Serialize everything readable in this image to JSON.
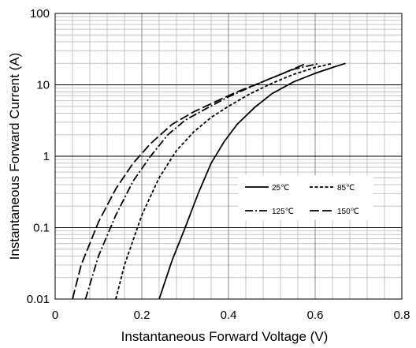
{
  "chart_data": {
    "type": "line",
    "title": "",
    "xlabel": "Instantaneous Forward Voltage (V)",
    "ylabel": "Instantaneous Forward Current (A)",
    "xlim": [
      0,
      0.8
    ],
    "ylim": [
      0.01,
      100
    ],
    "yscale": "log",
    "grid": true,
    "legend_position": "lower-right",
    "x_ticks": [
      "0",
      "0.2",
      "0.4",
      "0.6",
      "0.8"
    ],
    "y_ticks": [
      "0.01",
      "0.1",
      "1",
      "10",
      "100"
    ],
    "series": [
      {
        "name": "25℃",
        "dash": "solid",
        "points": [
          [
            0.24,
            0.01
          ],
          [
            0.27,
            0.035
          ],
          [
            0.3,
            0.1
          ],
          [
            0.33,
            0.3
          ],
          [
            0.36,
            0.8
          ],
          [
            0.39,
            1.6
          ],
          [
            0.42,
            2.8
          ],
          [
            0.46,
            4.8
          ],
          [
            0.5,
            7.5
          ],
          [
            0.55,
            11
          ],
          [
            0.6,
            14.5
          ],
          [
            0.64,
            17.5
          ],
          [
            0.67,
            20
          ]
        ]
      },
      {
        "name": "85℃",
        "dash": "short-dash",
        "points": [
          [
            0.14,
            0.01
          ],
          [
            0.16,
            0.03
          ],
          [
            0.2,
            0.15
          ],
          [
            0.24,
            0.5
          ],
          [
            0.28,
            1.2
          ],
          [
            0.32,
            2.2
          ],
          [
            0.36,
            3.5
          ],
          [
            0.4,
            5.0
          ],
          [
            0.45,
            7.5
          ],
          [
            0.5,
            10.5
          ],
          [
            0.55,
            14
          ],
          [
            0.6,
            17.5
          ],
          [
            0.64,
            20
          ]
        ]
      },
      {
        "name": "125℃",
        "dash": "dash-dot",
        "points": [
          [
            0.07,
            0.01
          ],
          [
            0.1,
            0.04
          ],
          [
            0.14,
            0.15
          ],
          [
            0.18,
            0.45
          ],
          [
            0.22,
            1.0
          ],
          [
            0.26,
            2.0
          ],
          [
            0.3,
            3.2
          ],
          [
            0.35,
            4.7
          ],
          [
            0.4,
            6.8
          ],
          [
            0.45,
            9.3
          ],
          [
            0.5,
            12.5
          ],
          [
            0.55,
            16.5
          ],
          [
            0.61,
            20
          ]
        ]
      },
      {
        "name": "150℃",
        "dash": "long-dash",
        "points": [
          [
            0.04,
            0.01
          ],
          [
            0.06,
            0.03
          ],
          [
            0.1,
            0.12
          ],
          [
            0.14,
            0.35
          ],
          [
            0.18,
            0.8
          ],
          [
            0.22,
            1.5
          ],
          [
            0.27,
            2.8
          ],
          [
            0.32,
            4.2
          ],
          [
            0.37,
            5.8
          ],
          [
            0.42,
            8.0
          ],
          [
            0.47,
            10.5
          ],
          [
            0.52,
            14
          ],
          [
            0.58,
            20
          ]
        ]
      }
    ]
  }
}
